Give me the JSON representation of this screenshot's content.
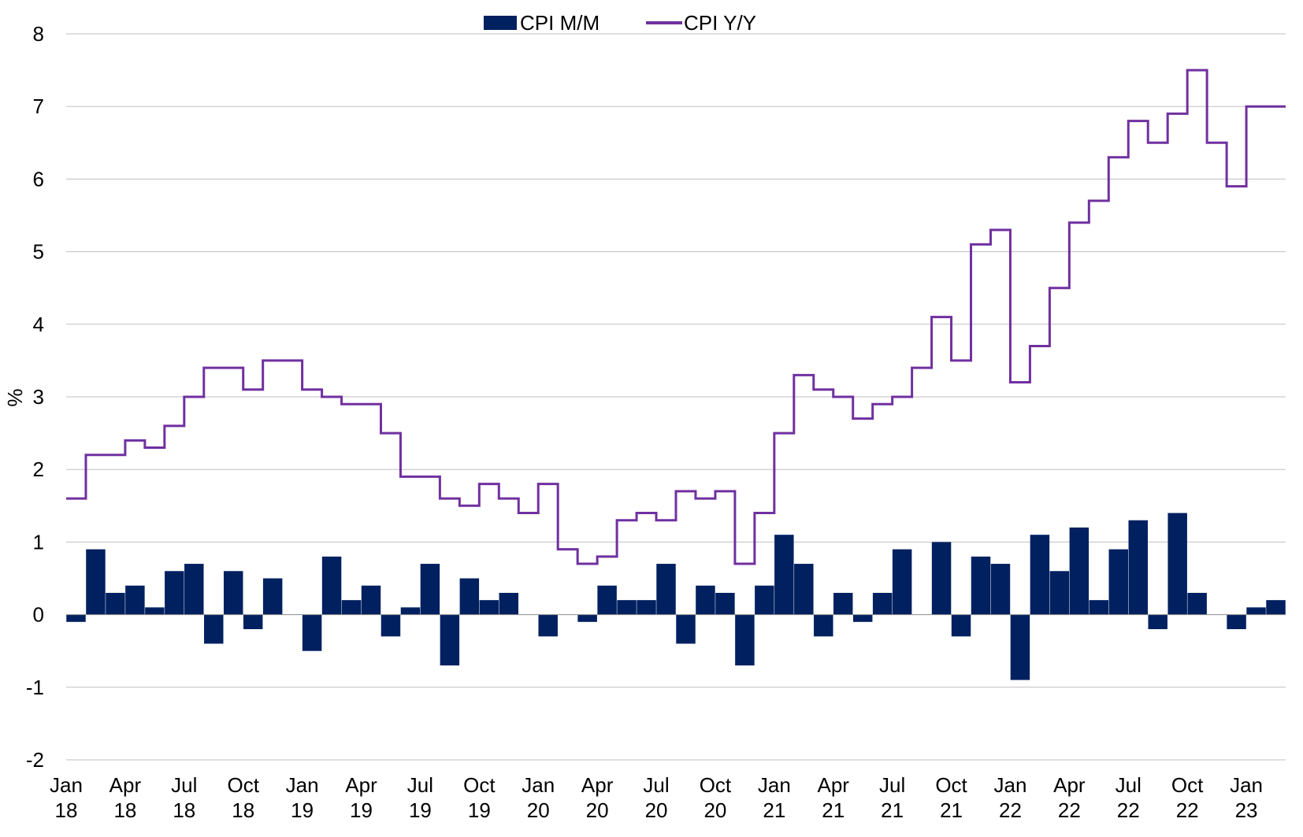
{
  "chart_data": {
    "type": "bar+line",
    "ylabel": "%",
    "ylim": [
      -2,
      8
    ],
    "yticks": [
      -2,
      -1,
      0,
      1,
      2,
      3,
      4,
      5,
      6,
      7,
      8
    ],
    "grid": true,
    "legend": "top-center",
    "x_tick_labels": [
      {
        "month": "Jan",
        "year": "18"
      },
      {
        "month": "Apr",
        "year": "18"
      },
      {
        "month": "Jul",
        "year": "18"
      },
      {
        "month": "Oct",
        "year": "18"
      },
      {
        "month": "Jan",
        "year": "19"
      },
      {
        "month": "Apr",
        "year": "19"
      },
      {
        "month": "Jul",
        "year": "19"
      },
      {
        "month": "Oct",
        "year": "19"
      },
      {
        "month": "Jan",
        "year": "20"
      },
      {
        "month": "Apr",
        "year": "20"
      },
      {
        "month": "Jul",
        "year": "20"
      },
      {
        "month": "Oct",
        "year": "20"
      },
      {
        "month": "Jan",
        "year": "21"
      },
      {
        "month": "Apr",
        "year": "21"
      },
      {
        "month": "Jul",
        "year": "21"
      },
      {
        "month": "Oct",
        "year": "21"
      },
      {
        "month": "Jan",
        "year": "22"
      },
      {
        "month": "Apr",
        "year": "22"
      },
      {
        "month": "Jul",
        "year": "22"
      },
      {
        "month": "Oct",
        "year": "22"
      },
      {
        "month": "Jan",
        "year": "23"
      }
    ],
    "series": [
      {
        "name": "CPI M/M",
        "kind": "bar",
        "color": "#002060",
        "values": [
          -0.1,
          0.9,
          0.3,
          0.4,
          0.1,
          0.6,
          0.7,
          -0.4,
          0.6,
          -0.2,
          0.5,
          0.0,
          -0.5,
          0.8,
          0.2,
          0.4,
          -0.3,
          0.1,
          0.7,
          -0.7,
          0.5,
          0.2,
          0.3,
          0.0,
          -0.3,
          0.0,
          -0.1,
          0.4,
          0.2,
          0.2,
          0.7,
          -0.4,
          0.4,
          0.3,
          -0.7,
          0.4,
          1.1,
          0.7,
          -0.3,
          0.3,
          -0.1,
          0.3,
          0.9,
          0.0,
          1.0,
          -0.3,
          0.8,
          0.7,
          -0.9,
          1.1,
          0.6,
          1.2,
          0.2,
          0.9,
          1.3,
          -0.2,
          1.4,
          0.3,
          0.0,
          -0.2,
          0.1,
          0.2
        ]
      },
      {
        "name": "CPI Y/Y",
        "kind": "step-line",
        "color": "#7030A0",
        "values": [
          1.6,
          2.2,
          2.2,
          2.4,
          2.3,
          2.6,
          3.0,
          3.4,
          3.4,
          3.1,
          3.5,
          3.5,
          3.1,
          3.0,
          2.9,
          2.9,
          2.5,
          1.9,
          1.9,
          1.6,
          1.5,
          1.8,
          1.6,
          1.4,
          1.8,
          0.9,
          0.7,
          0.8,
          1.3,
          1.4,
          1.3,
          1.7,
          1.6,
          1.7,
          0.7,
          1.4,
          2.5,
          3.3,
          3.1,
          3.0,
          2.7,
          2.9,
          3.0,
          3.4,
          4.1,
          3.5,
          5.1,
          5.3,
          3.2,
          3.7,
          4.5,
          5.4,
          5.7,
          6.3,
          6.8,
          6.5,
          6.9,
          7.5,
          6.5,
          5.9,
          7.0,
          7.0
        ]
      }
    ]
  }
}
